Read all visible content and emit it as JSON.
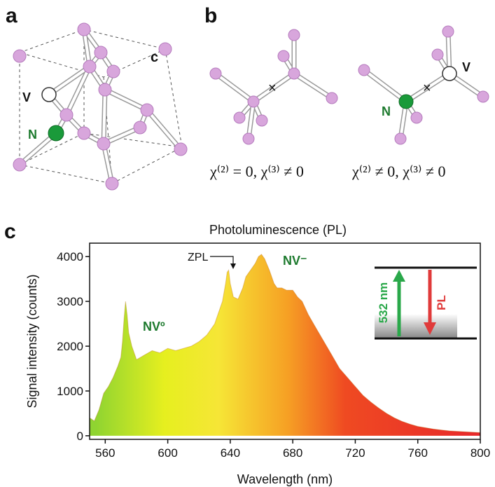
{
  "panels": {
    "a": "a",
    "b": "b",
    "c": "c"
  },
  "panel_a": {
    "vacancy_label": "V",
    "nitrogen_label": "N",
    "axis_label": "c"
  },
  "panel_b": {
    "left_caption": "χ⁽²⁾ = 0,  χ⁽³⁾ ≠ 0",
    "right_caption": "χ⁽²⁾ ≠ 0,  χ⁽³⁾ ≠ 0",
    "vacancy_label": "V",
    "nitrogen_label": "N"
  },
  "colors": {
    "nitrogen": "#1a9a3a",
    "vacancy": "#ffffff",
    "carbon": "#d8a6dc",
    "excitation_arrow": "#2aa84a",
    "pl_arrow": "#e03a3a",
    "nv_label": "#1d7a2e"
  },
  "chart_data": {
    "type": "area",
    "title": "Photoluminescence (PL)",
    "xlabel": "Wavelength (nm)",
    "ylabel": "Signal intensity (counts)",
    "xlim": [
      550,
      800
    ],
    "ylim": [
      -80,
      4300
    ],
    "xticks": [
      560,
      600,
      640,
      680,
      720,
      760,
      800
    ],
    "yticks": [
      0,
      1000,
      2000,
      3000,
      4000
    ],
    "grid": false,
    "fill": "gradient green-yellow-orange-red",
    "x": [
      550,
      553,
      556,
      559,
      562,
      565,
      568,
      570,
      571,
      572,
      573,
      574,
      575,
      577,
      580,
      585,
      590,
      595,
      600,
      605,
      610,
      615,
      620,
      625,
      630,
      632,
      635,
      637,
      638,
      639,
      640,
      642,
      645,
      648,
      650,
      653,
      656,
      658,
      660,
      662,
      665,
      668,
      670,
      673,
      676,
      680,
      683,
      686,
      690,
      695,
      700,
      705,
      710,
      715,
      720,
      725,
      730,
      735,
      740,
      745,
      750,
      755,
      760,
      765,
      770,
      775,
      780,
      785,
      790,
      795,
      800
    ],
    "y": [
      400,
      330,
      580,
      950,
      1100,
      1300,
      1550,
      1750,
      2100,
      2600,
      3000,
      2700,
      2300,
      2000,
      1700,
      1800,
      1900,
      1850,
      1950,
      1900,
      1950,
      2000,
      2100,
      2250,
      2500,
      2700,
      3000,
      3400,
      3650,
      3700,
      3400,
      3100,
      3050,
      3300,
      3550,
      3700,
      3850,
      4000,
      4050,
      3950,
      3700,
      3400,
      3300,
      3300,
      3250,
      3250,
      3100,
      3000,
      2700,
      2400,
      2100,
      1800,
      1500,
      1300,
      1100,
      900,
      750,
      620,
      500,
      400,
      320,
      260,
      210,
      180,
      150,
      130,
      110,
      100,
      90,
      80,
      70
    ],
    "annotations": [
      {
        "text": "NVº",
        "x": 582,
        "y": 2450
      },
      {
        "text": "NV⁻",
        "x": 672,
        "y": 3900
      },
      {
        "text": "ZPL",
        "x": 638,
        "y": 3700
      }
    ]
  },
  "chart_labels": {
    "nv0": "NVº",
    "nvminus": "NV⁻",
    "zpl": "ZPL"
  },
  "inset": {
    "excitation_label": "532 nm",
    "emission_label": "PL"
  }
}
